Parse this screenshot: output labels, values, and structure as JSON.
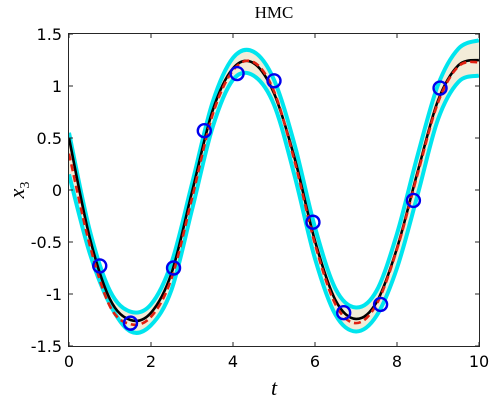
{
  "chart_data": {
    "type": "line",
    "title": "HMC",
    "xlabel": "t",
    "ylabel": "x",
    "ylabel_subscript": "3",
    "xlim": [
      0,
      10
    ],
    "ylim": [
      -1.5,
      1.5
    ],
    "xticks": [
      0,
      2,
      4,
      6,
      8,
      10
    ],
    "xtick_labels": [
      "0",
      "2",
      "4",
      "6",
      "8",
      "10"
    ],
    "yticks": [
      -1.5,
      -1,
      -0.5,
      0,
      0.5,
      1,
      1.5
    ],
    "ytick_labels": [
      "-1.5",
      "-1",
      "-0.5",
      "0",
      "0.5",
      "1",
      "1.5"
    ],
    "grid": false,
    "colors": {
      "truth": "#000000",
      "mean": "#e02010",
      "band_fill": "#f3ecd8",
      "band_edge": "#00e5ee",
      "observations": "#0000ee"
    },
    "x": [
      0,
      0.5,
      1,
      1.5,
      2,
      2.5,
      3,
      3.5,
      4,
      4.5,
      5,
      5.5,
      6,
      6.5,
      7,
      7.5,
      8,
      8.5,
      9,
      9.5,
      10
    ],
    "series": [
      {
        "style": "solid",
        "values": [
          0.5,
          -0.45,
          -1.05,
          -1.25,
          -1.18,
          -0.8,
          -0.02,
          0.76,
          1.17,
          1.22,
          0.93,
          0.31,
          -0.49,
          -1.06,
          -1.24,
          -1.08,
          -0.56,
          0.17,
          0.86,
          1.2,
          1.25
        ]
      },
      {
        "style": "dashed",
        "values": [
          0.35,
          -0.52,
          -1.12,
          -1.29,
          -1.22,
          -0.85,
          -0.08,
          0.72,
          1.15,
          1.23,
          0.95,
          0.28,
          -0.52,
          -1.1,
          -1.28,
          -1.1,
          -0.57,
          0.15,
          0.84,
          1.19,
          1.23
        ]
      }
    ],
    "band": {
      "lower": [
        0.15,
        -0.6,
        -1.1,
        -1.36,
        -1.3,
        -0.96,
        -0.19,
        0.6,
        1.06,
        1.1,
        0.82,
        0.14,
        -0.66,
        -1.2,
        -1.36,
        -1.21,
        -0.75,
        -0.05,
        0.68,
        1.04,
        1.1
      ],
      "upper": [
        0.55,
        -0.38,
        -0.97,
        -1.17,
        -1.1,
        -0.7,
        0.06,
        0.84,
        1.27,
        1.33,
        1.06,
        0.44,
        -0.36,
        -0.95,
        -1.13,
        -0.97,
        -0.42,
        0.33,
        1.01,
        1.36,
        1.44
      ]
    },
    "observations": {
      "x": [
        0.75,
        1.5,
        2.55,
        3.3,
        4.1,
        5.0,
        5.95,
        6.7,
        7.6,
        8.4,
        9.05
      ],
      "y": [
        -0.73,
        -1.28,
        -0.75,
        0.57,
        1.12,
        1.05,
        -0.31,
        -1.18,
        -1.1,
        -0.1,
        0.98
      ]
    }
  }
}
